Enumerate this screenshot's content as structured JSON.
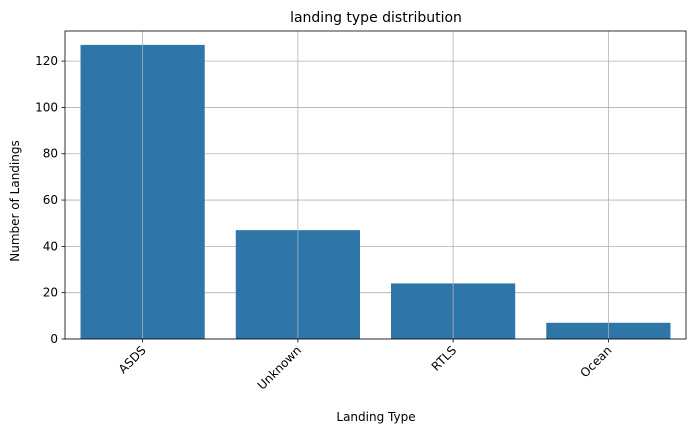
{
  "chart_data": {
    "type": "bar",
    "title": "landing type distribution",
    "xlabel": "Landing Type",
    "ylabel": "Number of Landings",
    "categories": [
      "ASDS",
      "Unknown",
      "RTLS",
      "Ocean"
    ],
    "values": [
      127,
      47,
      24,
      7
    ],
    "ylim": [
      0,
      133
    ],
    "yticks": [
      0,
      20,
      40,
      60,
      80,
      100,
      120
    ],
    "grid": true,
    "bar_color": "#2e75a8",
    "grid_color": "#b0b0b0",
    "xtick_rotation": -45
  }
}
